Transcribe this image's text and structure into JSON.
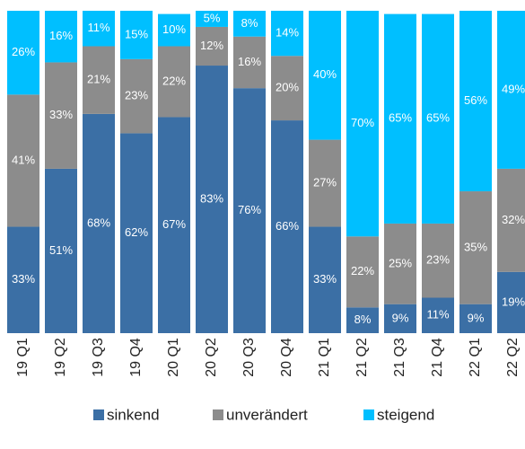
{
  "chart_data": {
    "type": "stacked_bar",
    "categories": [
      "19 Q1",
      "19 Q2",
      "19 Q3",
      "19 Q4",
      "20 Q1",
      "20 Q2",
      "20 Q3",
      "20 Q4",
      "21 Q1",
      "21 Q2",
      "21 Q3",
      "21 Q4",
      "22 Q1",
      "22 Q2"
    ],
    "ylim": [
      0,
      100
    ],
    "series": [
      {
        "name": "sinkend",
        "color": "#3b6fa5",
        "values": [
          33,
          51,
          68,
          62,
          67,
          83,
          76,
          66,
          33,
          8,
          9,
          11,
          9,
          19
        ],
        "value_labels": [
          "33%",
          "51%",
          "68%",
          "62%",
          "67%",
          "83%",
          "76%",
          "66%",
          "33%",
          "8%",
          "9%",
          "11%",
          "9%",
          "19%"
        ]
      },
      {
        "name": "unverändert",
        "color": "#8c8c8c",
        "values": [
          41,
          33,
          21,
          23,
          22,
          12,
          16,
          20,
          27,
          22,
          25,
          23,
          35,
          32
        ],
        "value_labels": [
          "41%",
          "33%",
          "21%",
          "23%",
          "22%",
          "12%",
          "16%",
          "20%",
          "27%",
          "22%",
          "25%",
          "23%",
          "35%",
          "32%"
        ]
      },
      {
        "name": "steigend",
        "color": "#00bfff",
        "values": [
          26,
          16,
          11,
          15,
          10,
          5,
          8,
          14,
          40,
          70,
          65,
          65,
          56,
          49
        ],
        "value_labels": [
          "26%",
          "16%",
          "11%",
          "15%",
          "10%",
          "5%",
          "8%",
          "14%",
          "40%",
          "70%",
          "65%",
          "65%",
          "56%",
          "49%"
        ]
      }
    ]
  }
}
